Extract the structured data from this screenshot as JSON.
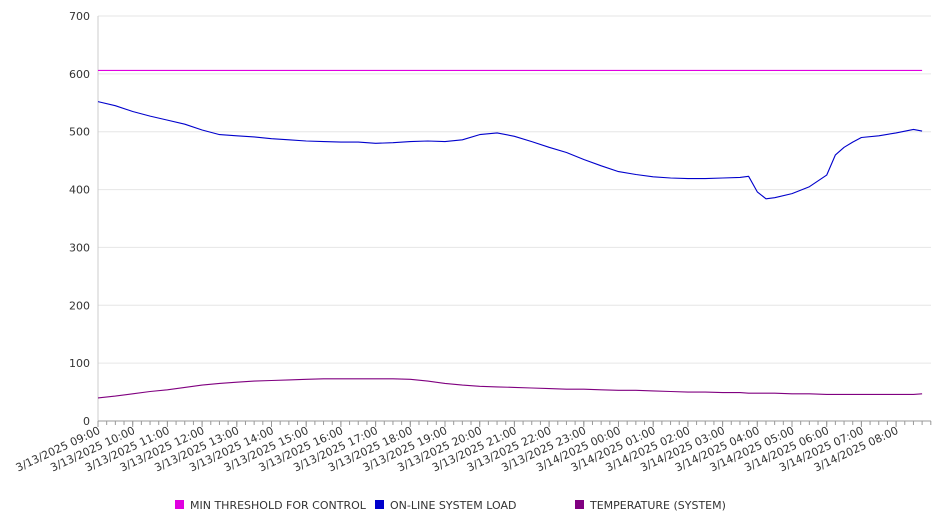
{
  "chart_data": {
    "type": "line",
    "title": "",
    "xlabel": "",
    "ylabel": "",
    "ylim": [
      0,
      700
    ],
    "yticks": [
      0,
      100,
      200,
      300,
      400,
      500,
      600,
      700
    ],
    "grid": true,
    "legend_position": "bottom",
    "x_tick_labels": [
      "3/13/2025 09:00",
      "3/13/2025 10:00",
      "3/13/2025 11:00",
      "3/13/2025 12:00",
      "3/13/2025 13:00",
      "3/13/2025 14:00",
      "3/13/2025 15:00",
      "3/13/2025 16:00",
      "3/13/2025 17:00",
      "3/13/2025 18:00",
      "3/13/2025 19:00",
      "3/13/2025 20:00",
      "3/13/2025 21:00",
      "3/13/2025 22:00",
      "3/13/2025 23:00",
      "3/14/2025 00:00",
      "3/14/2025 01:00",
      "3/14/2025 02:00",
      "3/14/2025 03:00",
      "3/14/2025 04:00",
      "3/14/2025 05:00",
      "3/14/2025 06:00",
      "3/14/2025 07:00",
      "3/14/2025 08:00"
    ],
    "x": [
      "3/13/2025 09:00",
      "3/13/2025 09:30",
      "3/13/2025 10:00",
      "3/13/2025 10:30",
      "3/13/2025 11:00",
      "3/13/2025 11:30",
      "3/13/2025 12:00",
      "3/13/2025 12:30",
      "3/13/2025 13:00",
      "3/13/2025 13:30",
      "3/13/2025 14:00",
      "3/13/2025 14:30",
      "3/13/2025 15:00",
      "3/13/2025 15:30",
      "3/13/2025 16:00",
      "3/13/2025 16:30",
      "3/13/2025 17:00",
      "3/13/2025 17:30",
      "3/13/2025 18:00",
      "3/13/2025 18:30",
      "3/13/2025 19:00",
      "3/13/2025 19:30",
      "3/13/2025 20:00",
      "3/13/2025 20:30",
      "3/13/2025 21:00",
      "3/13/2025 21:30",
      "3/13/2025 22:00",
      "3/13/2025 22:30",
      "3/13/2025 23:00",
      "3/13/2025 23:30",
      "3/14/2025 00:00",
      "3/14/2025 00:30",
      "3/14/2025 01:00",
      "3/14/2025 01:30",
      "3/14/2025 02:00",
      "3/14/2025 02:30",
      "3/14/2025 03:00",
      "3/14/2025 03:30",
      "3/14/2025 03:45",
      "3/14/2025 04:00",
      "3/14/2025 04:15",
      "3/14/2025 04:30",
      "3/14/2025 05:00",
      "3/14/2025 05:30",
      "3/14/2025 06:00",
      "3/14/2025 06:15",
      "3/14/2025 06:30",
      "3/14/2025 06:45",
      "3/14/2025 07:00",
      "3/14/2025 07:30",
      "3/14/2025 08:00",
      "3/14/2025 08:30",
      "3/14/2025 08:45"
    ],
    "series": [
      {
        "name": "MIN THRESHOLD FOR CONTROL",
        "color": "#e000e0",
        "values": [
          606,
          606,
          606,
          606,
          606,
          606,
          606,
          606,
          606,
          606,
          606,
          606,
          606,
          606,
          606,
          606,
          606,
          606,
          606,
          606,
          606,
          606,
          606,
          606,
          606,
          606,
          606,
          606,
          606,
          606,
          606,
          606,
          606,
          606,
          606,
          606,
          606,
          606,
          606,
          606,
          606,
          606,
          606,
          606,
          606,
          606,
          606,
          606,
          606,
          606,
          606,
          606,
          606
        ]
      },
      {
        "name": "ON-LINE SYSTEM LOAD",
        "color": "#0000cc",
        "values": [
          552,
          545,
          535,
          527,
          520,
          513,
          503,
          495,
          493,
          491,
          488,
          486,
          484,
          483,
          482,
          482,
          480,
          481,
          483,
          484,
          483,
          486,
          495,
          498,
          492,
          483,
          473,
          464,
          452,
          441,
          431,
          426,
          422,
          420,
          419,
          419,
          420,
          421,
          423,
          396,
          384,
          386,
          393,
          405,
          425,
          460,
          473,
          482,
          490,
          493,
          498,
          504,
          501
        ]
      },
      {
        "name": "TEMPERATURE (SYSTEM)",
        "color": "#800080",
        "values": [
          40,
          43,
          47,
          51,
          54,
          58,
          62,
          65,
          67,
          69,
          70,
          71,
          72,
          73,
          73,
          73,
          73,
          73,
          72,
          69,
          65,
          62,
          60,
          59,
          58,
          57,
          56,
          55,
          55,
          54,
          53,
          53,
          52,
          51,
          50,
          50,
          49,
          49,
          48,
          48,
          48,
          48,
          47,
          47,
          46,
          46,
          46,
          46,
          46,
          46,
          46,
          46,
          47
        ]
      }
    ]
  }
}
